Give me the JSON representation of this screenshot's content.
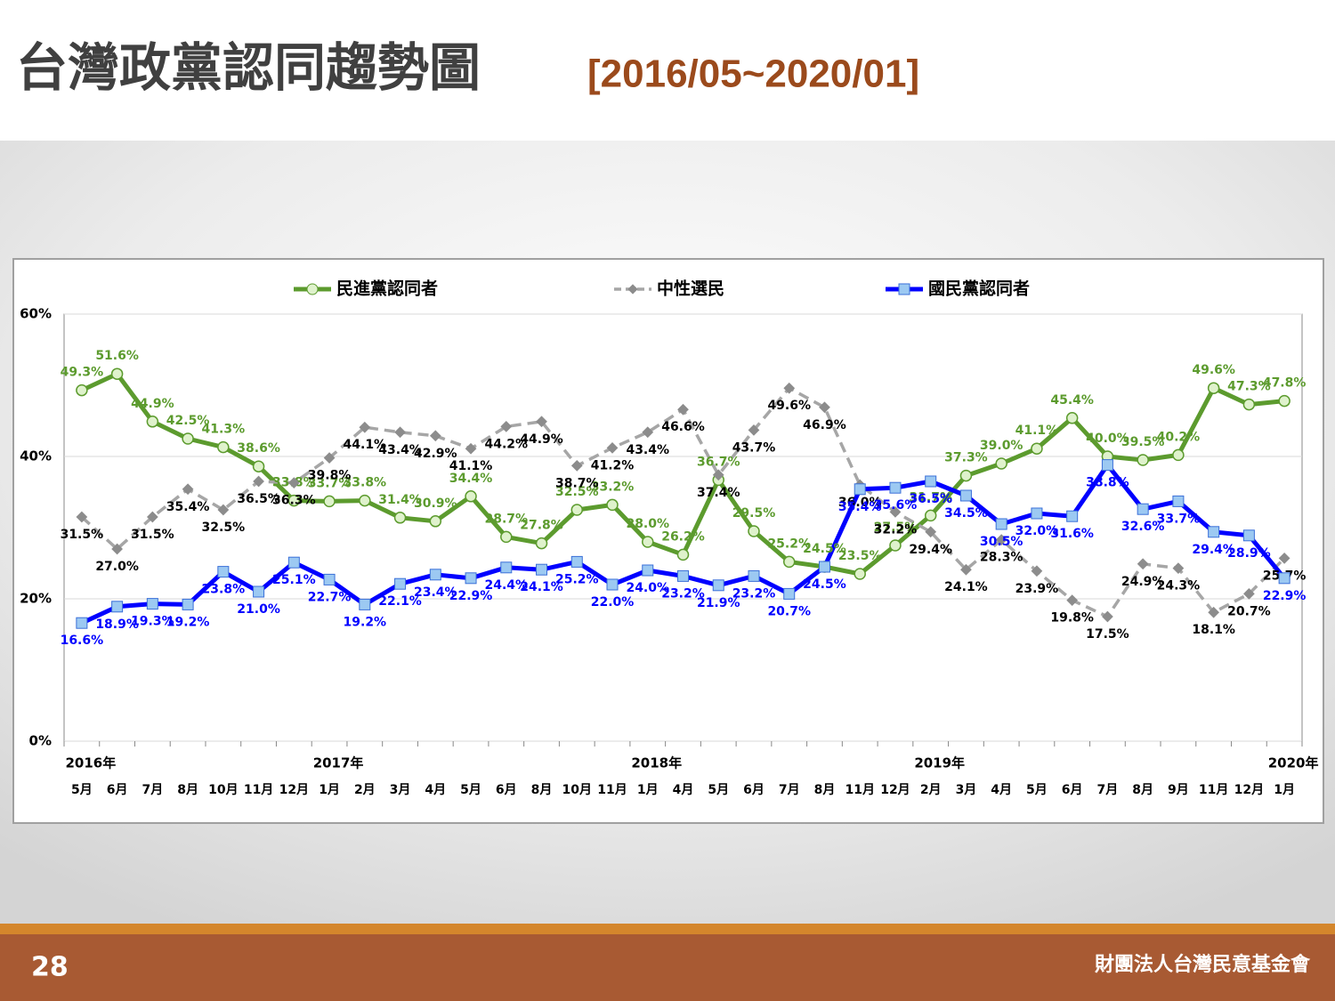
{
  "chart_data": {
    "type": "line",
    "title": "台灣政黨認同趨勢圖",
    "subtitle": "[2016/05~2020/01]",
    "categories": [
      "5月",
      "6月",
      "7月",
      "8月",
      "10月",
      "11月",
      "12月",
      "1月",
      "2月",
      "3月",
      "4月",
      "5月",
      "6月",
      "8月",
      "10月",
      "11月",
      "1月",
      "4月",
      "5月",
      "6月",
      "7月",
      "8月",
      "11月",
      "12月",
      "2月",
      "3月",
      "4月",
      "5月",
      "6月",
      "7月",
      "8月",
      "9月",
      "11月",
      "12月",
      "1月"
    ],
    "year_labels": [
      "2016年",
      null,
      null,
      null,
      null,
      null,
      null,
      "2017年",
      null,
      null,
      null,
      null,
      null,
      null,
      null,
      null,
      "2018年",
      null,
      null,
      null,
      null,
      null,
      null,
      null,
      "2019年",
      null,
      null,
      null,
      null,
      null,
      null,
      null,
      null,
      null,
      "2020年"
    ],
    "ylim": [
      0,
      60
    ],
    "yticks": [
      {
        "value": 0,
        "label": "0%"
      },
      {
        "value": 20,
        "label": "20%"
      },
      {
        "value": 40,
        "label": "40%"
      },
      {
        "value": 60,
        "label": "60%"
      }
    ],
    "grid": true,
    "legend": "top",
    "series": [
      {
        "name": "民進黨認同者",
        "color": "#5c9b2e",
        "marker": "circle",
        "dashed": false,
        "values": [
          49.3,
          51.6,
          44.9,
          42.5,
          41.3,
          38.6,
          33.8,
          33.7,
          33.8,
          31.4,
          30.9,
          34.4,
          28.7,
          27.8,
          32.5,
          33.2,
          28.0,
          26.2,
          36.7,
          29.5,
          25.2,
          24.5,
          23.5,
          27.5,
          31.7,
          37.3,
          39.0,
          41.1,
          45.4,
          40.0,
          39.5,
          40.2,
          49.6,
          47.3,
          47.8
        ],
        "value_labels": [
          "49.3%",
          "51.6%",
          "44.9%",
          "42.5%",
          "41.3%",
          "38.6%",
          "33.8%",
          "33.7%",
          "33.8%",
          "31.4%",
          "30.9%",
          "34.4%",
          "28.7%",
          "27.8%",
          "32.5%",
          "33.2%",
          "28.0%",
          "26.2%",
          "36.7%",
          "29.5%",
          "25.2%",
          "24.5%",
          "23.5%",
          "27.5%",
          "31.7%",
          "37.3%",
          "39.0%",
          "41.1%",
          "45.4%",
          "40.0%",
          "39.5%",
          "40.2%",
          "49.6%",
          "47.3%",
          "47.8%"
        ]
      },
      {
        "name": "中性選民",
        "color": "#a6a6a6",
        "marker": "diamond",
        "dashed": true,
        "values": [
          31.5,
          27.0,
          31.5,
          35.4,
          32.5,
          36.5,
          36.3,
          39.8,
          44.1,
          43.4,
          42.9,
          41.1,
          44.2,
          44.9,
          38.7,
          41.2,
          43.4,
          46.6,
          37.4,
          43.7,
          49.6,
          46.9,
          36.0,
          32.2,
          29.4,
          24.1,
          28.3,
          23.9,
          19.8,
          17.5,
          24.9,
          24.3,
          18.1,
          20.7,
          25.7
        ],
        "value_labels": [
          "31.5%",
          "27.0%",
          "31.5%",
          "35.4%",
          "32.5%",
          "36.5%",
          "36.3%",
          "39.8%",
          "44.1%",
          "43.4%",
          "42.9%",
          "41.1%",
          "44.2%",
          "44.9%",
          "38.7%",
          "41.2%",
          "43.4%",
          "46.6%",
          "37.4%",
          "43.7%",
          "49.6%",
          "46.9%",
          "36.0%",
          "32.2%",
          "29.4%",
          "24.1%",
          "28.3%",
          "23.9%",
          "19.8%",
          "17.5%",
          "24.9%",
          "24.3%",
          "18.1%",
          "20.7%",
          "25.7%"
        ]
      },
      {
        "name": "國民黨認同者",
        "color": "#0000ff",
        "marker": "square",
        "dashed": false,
        "values": [
          16.6,
          18.9,
          19.3,
          19.2,
          23.8,
          21.0,
          25.1,
          22.7,
          19.2,
          22.1,
          23.4,
          22.9,
          24.4,
          24.1,
          25.2,
          22.0,
          24.0,
          23.2,
          21.9,
          23.2,
          20.7,
          24.5,
          35.4,
          35.6,
          36.5,
          34.5,
          30.5,
          32.0,
          31.6,
          38.8,
          32.6,
          33.7,
          29.4,
          28.9,
          22.9
        ],
        "value_labels": [
          "16.6%",
          "18.9%",
          "19.3%",
          "19.2%",
          "23.8%",
          "21.0%",
          "25.1%",
          "22.7%",
          "19.2%",
          "22.1%",
          "23.4%",
          "22.9%",
          "24.4%",
          "24.1%",
          "25.2%",
          "22.0%",
          "24.0%",
          "23.2%",
          "21.9%",
          "23.2%",
          "20.7%",
          "24.5%",
          "35.4%",
          "35.6%",
          "36.5%",
          "34.5%",
          "30.5%",
          "32.0%",
          "31.6%",
          "38.8%",
          "32.6%",
          "33.7%",
          "29.4%",
          "28.9%",
          "22.9%"
        ]
      }
    ]
  },
  "footer": {
    "page": "28",
    "organization": "財團法人台灣民意基金會"
  }
}
